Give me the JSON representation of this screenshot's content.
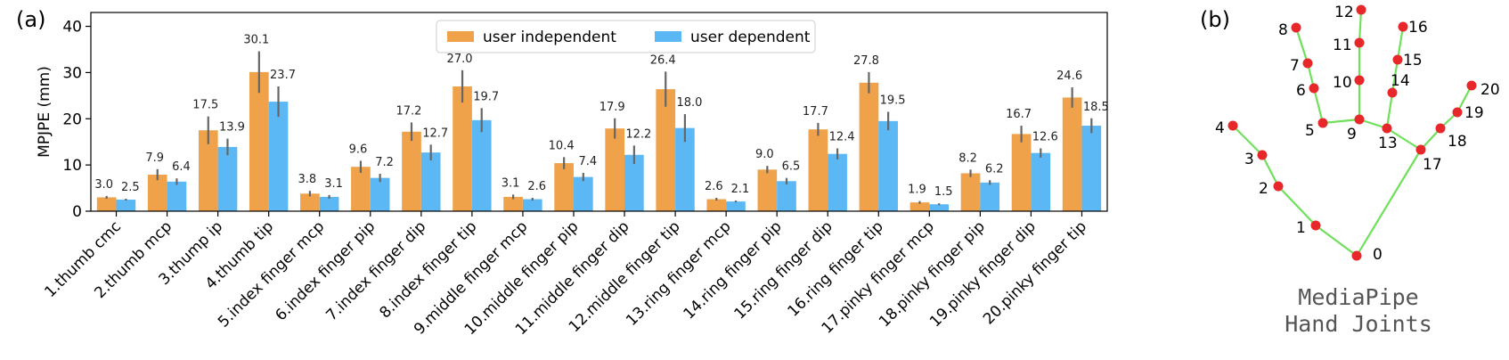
{
  "panel_a_label": "(a)",
  "panel_b_label": "(b)",
  "colors": {
    "series1": "#F0A24A",
    "series2": "#5BB8F5",
    "error": "#666666",
    "joint": "#E8272A",
    "bone": "#6EE05A"
  },
  "chart_data": {
    "type": "bar",
    "title": "",
    "xlabel": "",
    "ylabel": "MPJPE (mm)",
    "ylim": [
      0,
      43
    ],
    "yticks": [
      "0",
      "10",
      "20",
      "30",
      "40"
    ],
    "legend_position": "top-center",
    "categories": [
      "1.thumb cmc",
      "2.thumb mcp",
      "3.thump ip",
      "4.thumb tip",
      "5.index finger mcp",
      "6.index finger pip",
      "7.index finger dip",
      "8.index finger tip",
      "9.middle finger mcp",
      "10.middle finger pip",
      "11.middle finger dip",
      "12.middle finger tip",
      "13.ring finger mcp",
      "14.ring finger pip",
      "15.ring finger dip",
      "16.ring finger tip",
      "17.pinky finger mcp",
      "18.pinky finger pip",
      "19.pinky finger dip",
      "20.pinky finger tip"
    ],
    "series": [
      {
        "name": "user independent",
        "values": [
          3.0,
          7.9,
          17.5,
          30.1,
          3.8,
          9.6,
          17.2,
          27.0,
          3.1,
          10.4,
          17.9,
          26.4,
          2.6,
          9.0,
          17.7,
          27.8,
          1.9,
          8.2,
          16.7,
          24.6
        ],
        "labels": [
          "3.0",
          "7.9",
          "17.5",
          "30.1",
          "3.8",
          "9.6",
          "17.2",
          "27.0",
          "3.1",
          "10.4",
          "17.9",
          "26.4",
          "2.6",
          "9.0",
          "17.7",
          "27.8",
          "1.9",
          "8.2",
          "16.7",
          "24.6"
        ],
        "errors": [
          0.3,
          1.2,
          3.0,
          4.5,
          0.6,
          1.3,
          2.0,
          3.5,
          0.5,
          1.3,
          2.2,
          3.8,
          0.3,
          0.8,
          1.4,
          2.3,
          0.3,
          0.8,
          1.8,
          2.2
        ]
      },
      {
        "name": "user dependent",
        "values": [
          2.5,
          6.4,
          13.9,
          23.7,
          3.1,
          7.2,
          12.7,
          19.7,
          2.6,
          7.4,
          12.2,
          18.0,
          2.1,
          6.5,
          12.4,
          19.5,
          1.5,
          6.2,
          12.6,
          18.5
        ],
        "labels": [
          "2.5",
          "6.4",
          "13.9",
          "23.7",
          "3.1",
          "7.2",
          "12.7",
          "19.7",
          "2.6",
          "7.4",
          "12.2",
          "18.0",
          "2.1",
          "6.5",
          "12.4",
          "19.5",
          "1.5",
          "6.2",
          "12.6",
          "18.5"
        ],
        "errors": [
          0.2,
          0.7,
          1.8,
          3.3,
          0.4,
          0.9,
          1.7,
          2.6,
          0.3,
          0.9,
          2.0,
          3.0,
          0.2,
          0.7,
          1.2,
          2.0,
          0.2,
          0.5,
          1.0,
          1.6
        ]
      }
    ]
  },
  "hand": {
    "title_line1": "MediaPipe",
    "title_line2": "Hand Joints",
    "joint_labels": [
      "0",
      "1",
      "2",
      "3",
      "4",
      "5",
      "6",
      "7",
      "8",
      "9",
      "10",
      "11",
      "12",
      "13",
      "14",
      "15",
      "16",
      "17",
      "18",
      "19",
      "20"
    ]
  }
}
